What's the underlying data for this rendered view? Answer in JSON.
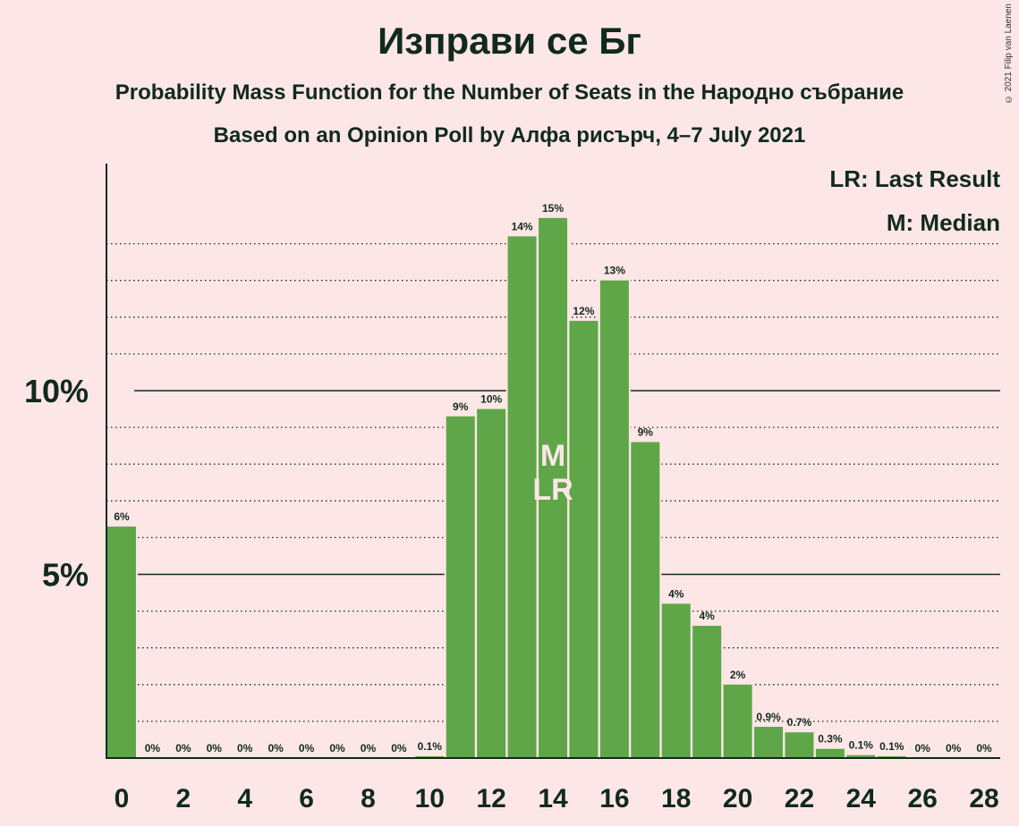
{
  "header": {
    "title": "Изправи се Бг",
    "subtitle1": "Probability Mass Function for the Number of Seats in the Народно събрание",
    "subtitle2": "Based on an Opinion Poll by Алфа рисърч, 4–7 July 2021",
    "copyright": "© 2021 Filip van Laenen"
  },
  "legend": {
    "lr": "LR: Last Result",
    "median": "M: Median"
  },
  "colors": {
    "background": "#fde6e6",
    "bar": "#5ea648",
    "text": "#102a1b"
  },
  "chart_data": {
    "type": "bar",
    "x": [
      0,
      1,
      2,
      3,
      4,
      5,
      6,
      7,
      8,
      9,
      10,
      11,
      12,
      13,
      14,
      15,
      16,
      17,
      18,
      19,
      20,
      21,
      22,
      23,
      24,
      25,
      26,
      27,
      28
    ],
    "values": [
      6.3,
      0,
      0,
      0,
      0,
      0,
      0,
      0,
      0,
      0,
      0.05,
      9.3,
      9.5,
      14.2,
      14.7,
      11.9,
      13.0,
      8.6,
      4.2,
      3.6,
      2.0,
      0.85,
      0.7,
      0.25,
      0.08,
      0.05,
      0,
      0,
      0
    ],
    "labels": [
      "6%",
      "0%",
      "0%",
      "0%",
      "0%",
      "0%",
      "0%",
      "0%",
      "0%",
      "0%",
      "0.1%",
      "9%",
      "10%",
      "14%",
      "15%",
      "12%",
      "13%",
      "9%",
      "4%",
      "4%",
      "2%",
      "0.9%",
      "0.7%",
      "0.3%",
      "0.1%",
      "0.1%",
      "0%",
      "0%",
      "0%"
    ],
    "xticks": [
      "0",
      "2",
      "4",
      "6",
      "8",
      "10",
      "12",
      "14",
      "16",
      "18",
      "20",
      "22",
      "24",
      "26",
      "28"
    ],
    "yticks": [
      "5%",
      "10%"
    ],
    "ytick_values": [
      5,
      10
    ],
    "ylim": [
      0,
      16
    ],
    "grid": true,
    "median_seat": 14,
    "last_result_seat": 14,
    "median_marker": "M",
    "last_result_marker": "LR",
    "legend_position": "top-right"
  }
}
